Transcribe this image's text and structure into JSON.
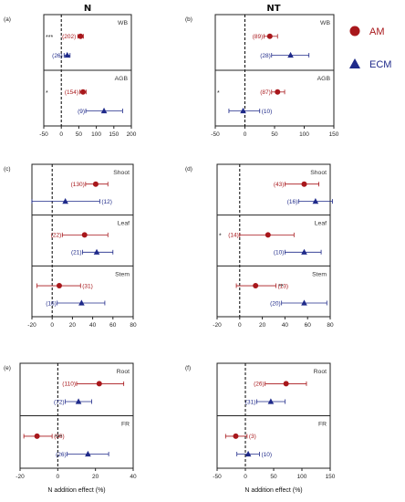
{
  "figure": {
    "column_titles": [
      "N",
      "NT"
    ],
    "legend": {
      "items": [
        {
          "label": "AM",
          "marker": "circle",
          "color": "#a8171b"
        },
        {
          "label": "ECM",
          "marker": "triangle",
          "color": "#1f2a8a"
        }
      ]
    },
    "colors": {
      "AM": "#a8171b",
      "ECM": "#1f2a8a",
      "axis": "#222222"
    }
  },
  "chart_data": [
    {
      "type": "scatter",
      "panel_label": "(a)",
      "column": "N",
      "xlim": [
        -50,
        200
      ],
      "xticks": [
        "-50",
        "0",
        "50",
        "100",
        "150",
        "200"
      ],
      "xlabel": "",
      "groups": [
        {
          "name": "WB",
          "points": [
            {
              "series": "AM",
              "x": 55,
              "lo": 47,
              "hi": 63,
              "n": "(202)",
              "sig": "***",
              "sig_side": "left"
            },
            {
              "series": "ECM",
              "x": 17,
              "lo": 8,
              "hi": 25,
              "n": "(26)",
              "sig": "",
              "sig_side": ""
            }
          ]
        },
        {
          "name": "AGB",
          "points": [
            {
              "series": "AM",
              "x": 62,
              "lo": 53,
              "hi": 71,
              "n": "(154)",
              "sig": "*",
              "sig_side": "left"
            },
            {
              "series": "ECM",
              "x": 122,
              "lo": 70,
              "hi": 175,
              "n": "(9)",
              "sig": "",
              "sig_side": ""
            }
          ]
        }
      ]
    },
    {
      "type": "scatter",
      "panel_label": "(b)",
      "column": "NT",
      "xlim": [
        -50,
        150
      ],
      "xticks": [
        "-50",
        "0",
        "50",
        "100",
        "150"
      ],
      "xlabel": "",
      "groups": [
        {
          "name": "WB",
          "points": [
            {
              "series": "AM",
              "x": 42,
              "lo": 32,
              "hi": 55,
              "n": "(89)",
              "sig": "",
              "sig_side": ""
            },
            {
              "series": "ECM",
              "x": 77,
              "lo": 45,
              "hi": 108,
              "n": "(28)",
              "sig": "",
              "sig_side": ""
            }
          ]
        },
        {
          "name": "AGB",
          "points": [
            {
              "series": "AM",
              "x": 55,
              "lo": 45,
              "hi": 67,
              "n": "(87)",
              "sig": "*",
              "sig_side": "left"
            },
            {
              "series": "ECM",
              "x": -3,
              "lo": -27,
              "hi": 25,
              "n": "(10)",
              "sig": "",
              "sig_side": ""
            }
          ]
        }
      ]
    },
    {
      "type": "scatter",
      "panel_label": "(c)",
      "column": "N",
      "xlim": [
        -20,
        80
      ],
      "xticks": [
        "-20",
        "0",
        "20",
        "40",
        "60",
        "80"
      ],
      "xlabel": "",
      "groups": [
        {
          "name": "Shoot",
          "points": [
            {
              "series": "AM",
              "x": 43,
              "lo": 33,
              "hi": 55,
              "n": "(130)",
              "sig": "",
              "sig_side": ""
            },
            {
              "series": "ECM",
              "x": 13,
              "lo": -20,
              "hi": 47,
              "n": "(12)",
              "sig": "",
              "sig_side": ""
            }
          ]
        },
        {
          "name": "Leaf",
          "points": [
            {
              "series": "AM",
              "x": 32,
              "lo": 10,
              "hi": 55,
              "n": "(22)",
              "sig": "",
              "sig_side": ""
            },
            {
              "series": "ECM",
              "x": 44,
              "lo": 30,
              "hi": 60,
              "n": "(21)",
              "sig": "",
              "sig_side": ""
            }
          ]
        },
        {
          "name": "Stem",
          "points": [
            {
              "series": "AM",
              "x": 7,
              "lo": -15,
              "hi": 28,
              "n": "(31)",
              "sig": "",
              "sig_side": ""
            },
            {
              "series": "ECM",
              "x": 29,
              "lo": 5,
              "hi": 52,
              "n": "(16)",
              "sig": "",
              "sig_side": ""
            }
          ]
        }
      ]
    },
    {
      "type": "scatter",
      "panel_label": "(d)",
      "column": "NT",
      "xlim": [
        -20,
        80
      ],
      "xticks": [
        "-20",
        "0",
        "20",
        "40",
        "60",
        "80"
      ],
      "xlabel": "",
      "groups": [
        {
          "name": "Shoot",
          "points": [
            {
              "series": "AM",
              "x": 57,
              "lo": 40,
              "hi": 70,
              "n": "(43)",
              "sig": "",
              "sig_side": ""
            },
            {
              "series": "ECM",
              "x": 67,
              "lo": 52,
              "hi": 82,
              "n": "(16)",
              "sig": "",
              "sig_side": ""
            }
          ]
        },
        {
          "name": "Leaf",
          "points": [
            {
              "series": "AM",
              "x": 25,
              "lo": 0,
              "hi": 48,
              "n": "(14)",
              "sig": "*",
              "sig_side": "left"
            },
            {
              "series": "ECM",
              "x": 57,
              "lo": 40,
              "hi": 72,
              "n": "(10)",
              "sig": "",
              "sig_side": ""
            }
          ]
        },
        {
          "name": "Stem",
          "points": [
            {
              "series": "AM",
              "x": 14,
              "lo": -3,
              "hi": 32,
              "n": "(13)",
              "sig": "**",
              "sig_side": "right"
            },
            {
              "series": "ECM",
              "x": 57,
              "lo": 37,
              "hi": 77,
              "n": "(20)",
              "sig": "",
              "sig_side": ""
            }
          ]
        }
      ]
    },
    {
      "type": "scatter",
      "panel_label": "(e)",
      "column": "N",
      "xlim": [
        -20,
        40
      ],
      "xticks": [
        "-20",
        "0",
        "20",
        "40"
      ],
      "xlabel": "N addition effect (%)",
      "groups": [
        {
          "name": "Root",
          "points": [
            {
              "series": "AM",
              "x": 22,
              "lo": 10,
              "hi": 35,
              "n": "(110)",
              "sig": "",
              "sig_side": ""
            },
            {
              "series": "ECM",
              "x": 11,
              "lo": 4,
              "hi": 18,
              "n": "(72)",
              "sig": "",
              "sig_side": ""
            }
          ]
        },
        {
          "name": "FR",
          "points": [
            {
              "series": "AM",
              "x": -11,
              "lo": -18,
              "hi": -3,
              "n": "(36)",
              "sig": "***",
              "sig_side": "right"
            },
            {
              "series": "ECM",
              "x": 16,
              "lo": 5,
              "hi": 27,
              "n": "(26)",
              "sig": "",
              "sig_side": ""
            }
          ]
        }
      ]
    },
    {
      "type": "scatter",
      "panel_label": "(f)",
      "column": "NT",
      "xlim": [
        -50,
        150
      ],
      "xticks": [
        "-50",
        "0",
        "50",
        "100",
        "150"
      ],
      "xlabel": "N addition effect (%)",
      "groups": [
        {
          "name": "Root",
          "points": [
            {
              "series": "AM",
              "x": 72,
              "lo": 35,
              "hi": 108,
              "n": "(26)",
              "sig": "",
              "sig_side": ""
            },
            {
              "series": "ECM",
              "x": 45,
              "lo": 20,
              "hi": 70,
              "n": "(31)",
              "sig": "",
              "sig_side": ""
            }
          ]
        },
        {
          "name": "FR",
          "points": [
            {
              "series": "AM",
              "x": -17,
              "lo": -35,
              "hi": 3,
              "n": "(3)",
              "sig": "",
              "sig_side": ""
            },
            {
              "series": "ECM",
              "x": 5,
              "lo": -15,
              "hi": 25,
              "n": "(10)",
              "sig": "",
              "sig_side": ""
            }
          ]
        }
      ]
    }
  ]
}
